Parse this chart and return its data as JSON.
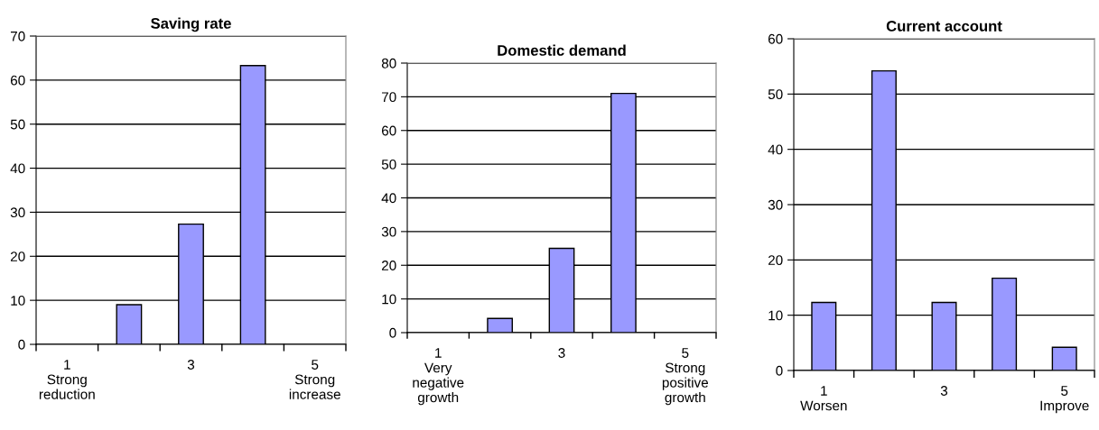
{
  "chart_data": [
    {
      "type": "bar",
      "title": "Saving rate",
      "categories": [
        "1\nStrong\nreduction",
        null,
        "3",
        null,
        "5\nStrong\nincrease"
      ],
      "values": [
        0,
        9,
        27.3,
        63.3,
        0
      ],
      "color": "#9999ff",
      "ylim": [
        0,
        70
      ],
      "yticks": [
        0,
        10,
        20,
        30,
        40,
        50,
        60,
        70
      ],
      "grid": "y",
      "legend": false
    },
    {
      "type": "bar",
      "title": "Domestic demand",
      "categories": [
        "1\nVery\nnegative\ngrowth",
        null,
        "3",
        null,
        "5\nStrong\npositive\ngrowth"
      ],
      "values": [
        0,
        4.2,
        25,
        71,
        0
      ],
      "color": "#9999ff",
      "ylim": [
        0,
        80
      ],
      "yticks": [
        0,
        10,
        20,
        30,
        40,
        50,
        60,
        70,
        80
      ],
      "grid": "y",
      "legend": false
    },
    {
      "type": "bar",
      "title": "Current account",
      "categories": [
        "1\nWorsen",
        null,
        "3",
        null,
        "5\nImprove"
      ],
      "values": [
        12.3,
        54.2,
        12.3,
        16.7,
        4.2
      ],
      "color": "#9999ff",
      "ylim": [
        0,
        60
      ],
      "yticks": [
        0,
        10,
        20,
        30,
        40,
        50,
        60
      ],
      "grid": "y",
      "legend": false
    }
  ]
}
